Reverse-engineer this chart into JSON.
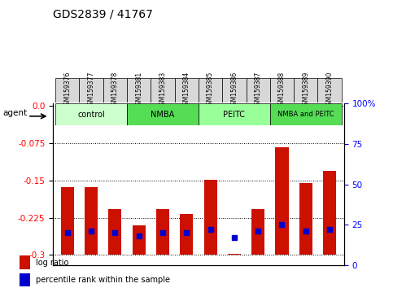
{
  "title": "GDS2839 / 41767",
  "samples": [
    "GSM159376",
    "GSM159377",
    "GSM159378",
    "GSM159381",
    "GSM159383",
    "GSM159384",
    "GSM159385",
    "GSM159386",
    "GSM159387",
    "GSM159388",
    "GSM159389",
    "GSM159390"
  ],
  "log_ratios": [
    -0.163,
    -0.163,
    -0.207,
    -0.24,
    -0.207,
    -0.218,
    -0.148,
    -0.298,
    -0.208,
    -0.082,
    -0.155,
    -0.13
  ],
  "percentile_ranks": [
    20,
    21,
    20,
    18,
    20,
    20,
    22,
    17,
    21,
    25,
    21,
    22
  ],
  "groups": [
    {
      "label": "control",
      "start": 0,
      "end": 3,
      "color": "#ccffcc"
    },
    {
      "label": "NMBA",
      "start": 3,
      "end": 6,
      "color": "#55dd55"
    },
    {
      "label": "PEITC",
      "start": 6,
      "end": 9,
      "color": "#99ff99"
    },
    {
      "label": "NMBA and PEITC",
      "start": 9,
      "end": 12,
      "color": "#55dd55"
    }
  ],
  "bar_color": "#cc1100",
  "dot_color": "#0000cc",
  "ylim_left": [
    -0.32,
    0.005
  ],
  "ylim_right": [
    0,
    100
  ],
  "yticks_left": [
    0.0,
    -0.075,
    -0.15,
    -0.225,
    -0.3
  ],
  "yticks_right": [
    0,
    25,
    50,
    75,
    100
  ],
  "bar_bottom": -0.3,
  "legend_items": [
    "log ratio",
    "percentile rank within the sample"
  ]
}
